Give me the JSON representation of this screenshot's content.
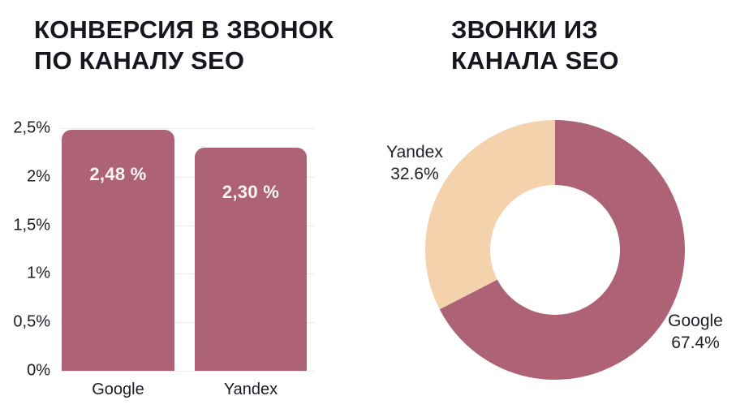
{
  "page": {
    "background": "#ffffff"
  },
  "colors": {
    "rose": "#ad6276",
    "beige": "#f3d2ac",
    "title_text": "#16161e",
    "axis_text": "#1c1c24",
    "gridline": "#ececec",
    "bar_value_text": "#fdf6f7"
  },
  "chart_data": [
    {
      "type": "bar",
      "title_lines": [
        "КОНВЕРСИЯ В ЗВОНОК",
        "ПО КАНАЛУ SEO"
      ],
      "categories": [
        "Google",
        "Yandex"
      ],
      "values": [
        2.48,
        2.3
      ],
      "value_labels": [
        "2,48 %",
        "2,30 %"
      ],
      "bar_color": "#ad6276",
      "xlabel": "",
      "ylabel": "",
      "ylim": [
        0,
        2.5
      ],
      "grid": true,
      "legend": "none",
      "yticks": [
        {
          "value": 2.5,
          "label": "2,5%"
        },
        {
          "value": 2.0,
          "label": "2%"
        },
        {
          "value": 1.5,
          "label": "1,5%"
        },
        {
          "value": 1.0,
          "label": "1%"
        },
        {
          "value": 0.5,
          "label": "0,5%"
        },
        {
          "value": 0.0,
          "label": "0%"
        }
      ]
    },
    {
      "type": "pie",
      "subtype": "donut",
      "title_lines": [
        "ЗВОНКИ ИЗ",
        "КАНАЛА SEO"
      ],
      "start_position": "top",
      "direction": "clockwise",
      "hole_ratio": 0.5,
      "legend": "none",
      "segments": [
        {
          "name": "Google",
          "value": 67.4,
          "label_lines": [
            "Google",
            "67.4%"
          ],
          "color": "#ad6276"
        },
        {
          "name": "Yandex",
          "value": 32.6,
          "label_lines": [
            "Yandex",
            "32.6%"
          ],
          "color": "#f3d2ac"
        }
      ]
    }
  ]
}
